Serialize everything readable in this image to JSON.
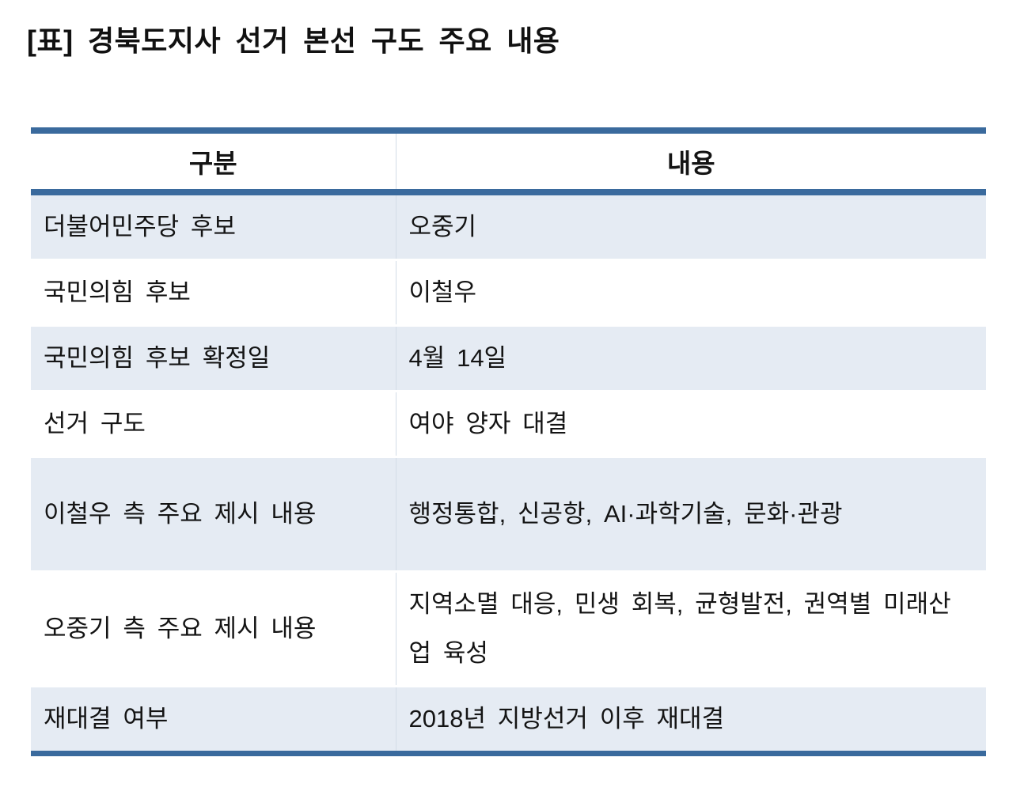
{
  "title": "[표] 경북도지사 선거 본선 구도 주요 내용",
  "colors": {
    "rule_blue": "#3a6a9d",
    "row_alt_bg": "#e5ebf3",
    "column_divider": "#d3dce6",
    "text": "#141414"
  },
  "table": {
    "headers": [
      "구분",
      "내용"
    ],
    "rows": [
      {
        "label": "더불어민주당 후보",
        "value": "오중기"
      },
      {
        "label": "국민의힘 후보",
        "value": "이철우"
      },
      {
        "label": "국민의힘 후보 확정일",
        "value": "4월 14일"
      },
      {
        "label": "선거 구도",
        "value": "여야 양자 대결"
      },
      {
        "label": "이철우 측 주요 제시 내용",
        "value": "행정통합, 신공항, AI·과학기술, 문화·관광"
      },
      {
        "label": "오중기 측 주요 제시 내용",
        "value": "지역소멸 대응, 민생 회복, 균형발전, 권역별 미래산업 육성"
      },
      {
        "label": "재대결 여부",
        "value": "2018년 지방선거 이후 재대결"
      }
    ]
  }
}
